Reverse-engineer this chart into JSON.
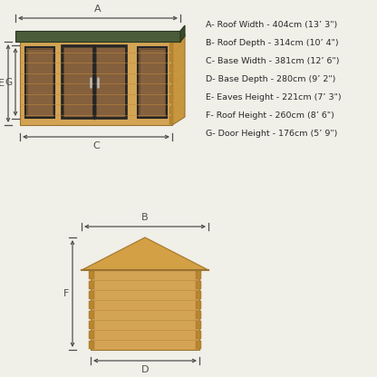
{
  "background_color": "#f0efe8",
  "specs": [
    "A- Roof Width - 404cm (13’ 3\")",
    "B- Roof Depth - 314cm (10’ 4\")",
    "C- Base Width - 381cm (12’ 6\")",
    "D- Base Depth - 280cm (9’ 2\")",
    "E- Eaves Height - 221cm (7’ 3\")",
    "F- Roof Height - 260cm (8’ 6\")",
    "G- Door Height - 176cm (5’ 9\")"
  ],
  "wood_light": "#d4a455",
  "wood_mid": "#c8963e",
  "wood_dark": "#b8852e",
  "wood_grain": "#bf8d3a",
  "roof_green": "#4a5c3a",
  "roof_green_side": "#3a4a2c",
  "frame_dark": "#252525",
  "glass_color": "#7a5838",
  "dim_color": "#505050",
  "text_color": "#2a2a2a",
  "bg": "#f0efe8"
}
